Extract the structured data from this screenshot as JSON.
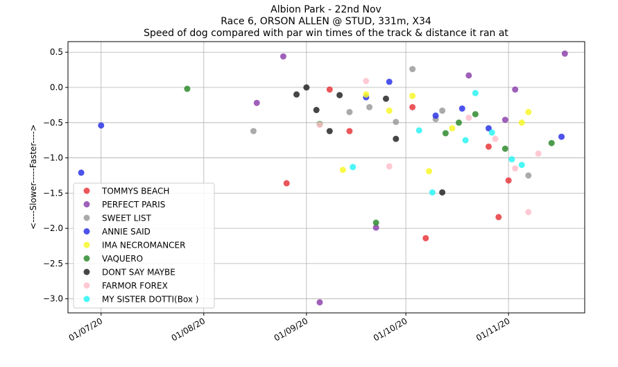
{
  "chart_data": {
    "type": "scatter",
    "title_lines": [
      "Albion Park  - 22nd Nov",
      "Race 6, ORSON ALLEN @ STUD, 331m, X34",
      "Speed of dog compared with par win times of the track & distance it ran at"
    ],
    "ylabel": "<----Slower-----Faster---->",
    "xlabel": "",
    "x_tick_labels": [
      "01/07/20",
      "01/08/20",
      "01/09/20",
      "01/10/20",
      "01/11/20"
    ],
    "x_tick_dates": [
      "2020-07-01",
      "2020-08-01",
      "2020-09-01",
      "2020-10-01",
      "2020-11-01"
    ],
    "xlim": [
      "2020-06-21",
      "2020-11-24"
    ],
    "ylim": [
      -3.2,
      0.65
    ],
    "y_ticks": [
      0.5,
      0.0,
      -0.5,
      -1.0,
      -1.5,
      -2.0,
      -2.5,
      -3.0
    ],
    "y_tick_labels": [
      "0.5",
      "0.0",
      "−0.5",
      "−1.0",
      "−1.5",
      "−2.0",
      "−2.5",
      "−3.0"
    ],
    "grid": true,
    "legend_position": "lower-left",
    "series": [
      {
        "name": "TOMMYS BEACH",
        "color": "#e8383d",
        "points": [
          {
            "x": "2020-08-26",
            "y": -1.36
          },
          {
            "x": "2020-09-08",
            "y": -0.03
          },
          {
            "x": "2020-09-14",
            "y": -0.62
          },
          {
            "x": "2020-10-03",
            "y": -0.28
          },
          {
            "x": "2020-10-07",
            "y": -2.14
          },
          {
            "x": "2020-10-26",
            "y": -0.84
          },
          {
            "x": "2020-10-29",
            "y": -1.84
          },
          {
            "x": "2020-11-01",
            "y": -1.32
          }
        ]
      },
      {
        "name": "PERFECT PARIS",
        "color": "#8e44ad",
        "points": [
          {
            "x": "2020-08-17",
            "y": -0.22
          },
          {
            "x": "2020-08-25",
            "y": 0.44
          },
          {
            "x": "2020-09-05",
            "y": -3.05
          },
          {
            "x": "2020-09-22",
            "y": -1.99
          },
          {
            "x": "2020-10-20",
            "y": 0.17
          },
          {
            "x": "2020-10-31",
            "y": -0.46
          },
          {
            "x": "2020-11-03",
            "y": -0.03
          },
          {
            "x": "2020-11-18",
            "y": 0.48
          }
        ]
      },
      {
        "name": "SWEET LIST",
        "color": "#9b9b9b",
        "points": [
          {
            "x": "2020-08-16",
            "y": -0.62
          },
          {
            "x": "2020-09-14",
            "y": -0.35
          },
          {
            "x": "2020-09-20",
            "y": -0.28
          },
          {
            "x": "2020-09-28",
            "y": -0.49
          },
          {
            "x": "2020-10-03",
            "y": 0.26
          },
          {
            "x": "2020-10-10",
            "y": -0.45
          },
          {
            "x": "2020-10-12",
            "y": -0.33
          },
          {
            "x": "2020-11-07",
            "y": -1.25
          }
        ]
      },
      {
        "name": "ANNIE SAID",
        "color": "#2d35e8",
        "points": [
          {
            "x": "2020-06-25",
            "y": -1.21
          },
          {
            "x": "2020-07-01",
            "y": -0.54
          },
          {
            "x": "2020-09-19",
            "y": -0.14
          },
          {
            "x": "2020-09-26",
            "y": 0.08
          },
          {
            "x": "2020-10-10",
            "y": -0.4
          },
          {
            "x": "2020-10-18",
            "y": -0.3
          },
          {
            "x": "2020-10-26",
            "y": -0.58
          },
          {
            "x": "2020-11-17",
            "y": -0.7
          }
        ]
      },
      {
        "name": "IMA NECROMANCER",
        "color": "#f7f72a",
        "points": [
          {
            "x": "2020-09-12",
            "y": -1.17
          },
          {
            "x": "2020-09-19",
            "y": -0.1
          },
          {
            "x": "2020-09-26",
            "y": -0.33
          },
          {
            "x": "2020-10-03",
            "y": -0.12
          },
          {
            "x": "2020-10-08",
            "y": -1.19
          },
          {
            "x": "2020-10-15",
            "y": -0.58
          },
          {
            "x": "2020-11-05",
            "y": -0.5
          },
          {
            "x": "2020-11-07",
            "y": -0.35
          }
        ]
      },
      {
        "name": "VAQUERO",
        "color": "#2e8b2e",
        "points": [
          {
            "x": "2020-07-27",
            "y": -0.02
          },
          {
            "x": "2020-09-05",
            "y": -0.52
          },
          {
            "x": "2020-09-22",
            "y": -1.92
          },
          {
            "x": "2020-10-13",
            "y": -0.65
          },
          {
            "x": "2020-10-17",
            "y": -0.5
          },
          {
            "x": "2020-10-22",
            "y": -0.38
          },
          {
            "x": "2020-10-31",
            "y": -0.87
          },
          {
            "x": "2020-11-14",
            "y": -0.79
          }
        ]
      },
      {
        "name": "DONT SAY MAYBE",
        "color": "#262626",
        "points": [
          {
            "x": "2020-08-29",
            "y": -0.1
          },
          {
            "x": "2020-09-01",
            "y": 0.0
          },
          {
            "x": "2020-09-04",
            "y": -0.32
          },
          {
            "x": "2020-09-08",
            "y": -0.62
          },
          {
            "x": "2020-09-11",
            "y": -0.11
          },
          {
            "x": "2020-09-25",
            "y": -0.16
          },
          {
            "x": "2020-09-28",
            "y": -0.73
          },
          {
            "x": "2020-10-12",
            "y": -1.49
          }
        ]
      },
      {
        "name": "FARMOR FOREX",
        "color": "#ffc0cb",
        "points": [
          {
            "x": "2020-09-05",
            "y": -0.53
          },
          {
            "x": "2020-09-19",
            "y": 0.09
          },
          {
            "x": "2020-09-26",
            "y": -1.12
          },
          {
            "x": "2020-10-20",
            "y": -0.43
          },
          {
            "x": "2020-10-28",
            "y": -0.73
          },
          {
            "x": "2020-11-03",
            "y": -1.15
          },
          {
            "x": "2020-11-07",
            "y": -1.77
          },
          {
            "x": "2020-11-10",
            "y": -0.94
          }
        ]
      },
      {
        "name": "MY SISTER DOTTI(Box )",
        "color": "#2bf5f5",
        "points": [
          {
            "x": "2020-09-15",
            "y": -1.13
          },
          {
            "x": "2020-10-05",
            "y": -0.61
          },
          {
            "x": "2020-10-09",
            "y": -1.49
          },
          {
            "x": "2020-10-19",
            "y": -0.75
          },
          {
            "x": "2020-10-22",
            "y": -0.08
          },
          {
            "x": "2020-10-27",
            "y": -0.64
          },
          {
            "x": "2020-11-02",
            "y": -1.02
          },
          {
            "x": "2020-11-05",
            "y": -1.1
          }
        ]
      }
    ]
  }
}
